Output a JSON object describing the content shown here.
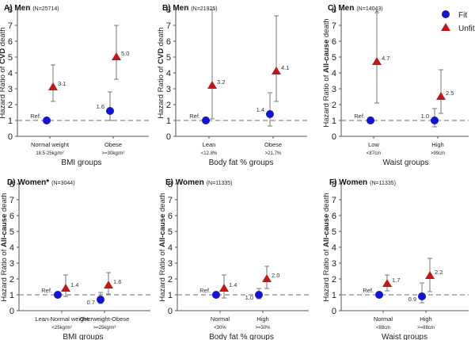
{
  "chart_data": [
    {
      "type": "scatter",
      "panel_label": "A) Men",
      "n_label": "(N=25714)",
      "ylabel_prefix": "Hazard Ratio of ",
      "ylabel_bold": "CVD",
      "ylabel_suffix": " death",
      "xlabel": "BMI groups",
      "ylim": [
        0,
        8
      ],
      "yticks": [
        0,
        1,
        2,
        3,
        4,
        5,
        6,
        7,
        8
      ],
      "reference_line": 1,
      "categories": [
        {
          "label": "Normal weight",
          "sub": "18.5-25kg/m²"
        },
        {
          "label": "Obese",
          "sub": ">=30kg/m²"
        }
      ],
      "series": [
        {
          "name": "Fit",
          "points": [
            {
              "value": 1.0,
              "ci": null,
              "label": "Ref."
            },
            {
              "value": 1.6,
              "ci": [
                1.0,
                2.8
              ],
              "label": "1.6"
            }
          ]
        },
        {
          "name": "Unfit",
          "points": [
            {
              "value": 3.1,
              "ci": [
                2.2,
                4.5
              ],
              "label": "3.1"
            },
            {
              "value": 5.0,
              "ci": [
                3.6,
                7.0
              ],
              "label": "5.0"
            }
          ]
        }
      ]
    },
    {
      "type": "scatter",
      "panel_label": "B) Men",
      "n_label": "(N=21925)",
      "ylabel_prefix": "Hazard Ratio of ",
      "ylabel_bold": "CVD",
      "ylabel_suffix": " death",
      "xlabel": "Body fat % groups",
      "ylim": [
        0,
        8
      ],
      "yticks": [
        0,
        1,
        2,
        3,
        4,
        5,
        6,
        7,
        8
      ],
      "reference_line": 1,
      "categories": [
        {
          "label": "Lean",
          "sub": "<12.8%"
        },
        {
          "label": "Obese",
          "sub": ">21.7%"
        }
      ],
      "series": [
        {
          "name": "Fit",
          "points": [
            {
              "value": 1.0,
              "ci": null,
              "label": "Ref."
            },
            {
              "value": 1.4,
              "ci": [
                0.65,
                2.75
              ],
              "label": "1.4"
            }
          ]
        },
        {
          "name": "Unfit",
          "points": [
            {
              "value": 3.2,
              "ci": [
                1.1,
                8.0
              ],
              "label": "3.2"
            },
            {
              "value": 4.1,
              "ci": [
                2.2,
                7.6
              ],
              "label": "4.1"
            }
          ]
        }
      ]
    },
    {
      "type": "scatter",
      "panel_label": "C) Men",
      "n_label": "(N=14043)",
      "ylabel_prefix": "Hazard Ratio of ",
      "ylabel_bold": "All-cause",
      "ylabel_suffix": " death",
      "xlabel": "Waist groups",
      "ylim": [
        0,
        8
      ],
      "yticks": [
        0,
        1,
        2,
        3,
        4,
        5,
        6,
        7,
        8
      ],
      "reference_line": 1,
      "categories": [
        {
          "label": "Low",
          "sub": "<87cm"
        },
        {
          "label": "High",
          "sub": ">99cm"
        }
      ],
      "series": [
        {
          "name": "Fit",
          "points": [
            {
              "value": 1.0,
              "ci": null,
              "label": "Ref."
            },
            {
              "value": 1.0,
              "ci": [
                0.6,
                1.75
              ],
              "label": "1.0"
            }
          ]
        },
        {
          "name": "Unfit",
          "points": [
            {
              "value": 4.7,
              "ci": [
                2.1,
                8.0
              ],
              "label": "4.7",
              "ci_upper_arrow": true
            },
            {
              "value": 2.5,
              "ci": [
                1.45,
                4.2
              ],
              "label": "2.5"
            }
          ]
        }
      ]
    },
    {
      "type": "scatter",
      "panel_label": "D) Women*",
      "n_label": "(N=3044)",
      "ylabel_prefix": "Hazard Ratio of ",
      "ylabel_bold": "All-cause",
      "ylabel_suffix": " death",
      "xlabel": "BMI groups",
      "ylim": [
        0,
        8
      ],
      "yticks": [
        0,
        1,
        2,
        3,
        4,
        5,
        6,
        7,
        8
      ],
      "reference_line": 1,
      "categories": [
        {
          "label": "Lean-Normal weight",
          "sub": "<25kg/m²"
        },
        {
          "label": "Overweight-Obese",
          "sub": ">=25kg/m²"
        }
      ],
      "series": [
        {
          "name": "Fit",
          "points": [
            {
              "value": 1.0,
              "ci": null,
              "label": "Ref."
            },
            {
              "value": 0.7,
              "ci": [
                0.45,
                1.15
              ],
              "label": "0.7"
            }
          ]
        },
        {
          "name": "Unfit",
          "points": [
            {
              "value": 1.4,
              "ci": [
                0.9,
                2.25
              ],
              "label": "1.4"
            },
            {
              "value": 1.6,
              "ci": [
                1.05,
                2.4
              ],
              "label": "1.6"
            }
          ]
        }
      ]
    },
    {
      "type": "scatter",
      "panel_label": "E) Women",
      "n_label": "(N=11335)",
      "ylabel_prefix": "Hazard Ratio of ",
      "ylabel_bold": "All-cause",
      "ylabel_suffix": " death",
      "xlabel": "Body fat % groups",
      "ylim": [
        0,
        8
      ],
      "yticks": [
        0,
        1,
        2,
        3,
        4,
        5,
        6,
        7,
        8
      ],
      "reference_line": 1,
      "categories": [
        {
          "label": "Normal",
          "sub": "<30%"
        },
        {
          "label": "High",
          "sub": ">=30%"
        }
      ],
      "series": [
        {
          "name": "Fit",
          "points": [
            {
              "value": 1.0,
              "ci": null,
              "label": "Ref."
            },
            {
              "value": 1.0,
              "ci": [
                0.75,
                1.4
              ],
              "label": "1.0"
            }
          ]
        },
        {
          "name": "Unfit",
          "points": [
            {
              "value": 1.4,
              "ci": [
                0.8,
                2.25
              ],
              "label": "1.4"
            },
            {
              "value": 2.0,
              "ci": [
                1.4,
                2.8
              ],
              "label": "2.0"
            }
          ]
        }
      ]
    },
    {
      "type": "scatter",
      "panel_label": "F) Women",
      "n_label": "(N=11335)",
      "ylabel_prefix": "Hazard Ratio of ",
      "ylabel_bold": "All-cause",
      "ylabel_suffix": " death",
      "xlabel": "Waist groups",
      "ylim": [
        0,
        8
      ],
      "yticks": [
        0,
        1,
        2,
        3,
        4,
        5,
        6,
        7,
        8
      ],
      "reference_line": 1,
      "categories": [
        {
          "label": "Normal",
          "sub": "<88cm"
        },
        {
          "label": "High",
          "sub": ">=88cm"
        }
      ],
      "series": [
        {
          "name": "Fit",
          "points": [
            {
              "value": 1.0,
              "ci": null,
              "label": "Ref."
            },
            {
              "value": 0.9,
              "ci": [
                0.5,
                1.75
              ],
              "label": "0.9"
            }
          ]
        },
        {
          "name": "Unfit",
          "points": [
            {
              "value": 1.7,
              "ci": [
                1.25,
                2.25
              ],
              "label": "1.7"
            },
            {
              "value": 2.2,
              "ci": [
                1.2,
                3.3
              ],
              "label": "2.2"
            }
          ]
        }
      ]
    }
  ],
  "legend": {
    "placement": "top-right",
    "items": [
      {
        "name": "Fit",
        "marker": "circle",
        "color": "#1515c8"
      },
      {
        "name": "Unfit",
        "marker": "triangle",
        "color": "#c01818"
      }
    ]
  },
  "colors": {
    "fit": "#1515c8",
    "unfit": "#c01818",
    "errorbar": "#7a7a7a",
    "refline": "#8a8a8a",
    "axis": "#555555"
  }
}
